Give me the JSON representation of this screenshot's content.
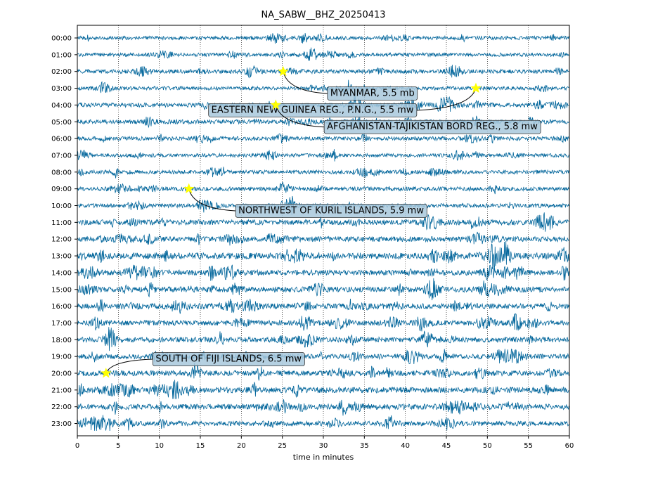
{
  "chart_data": {
    "type": "line",
    "title": "NA_SABW__BHZ_20250413",
    "xlabel": "time in minutes",
    "ylabel": "",
    "xlim": [
      0,
      60
    ],
    "x_ticks": [
      "0",
      "5",
      "10",
      "15",
      "20",
      "25",
      "30",
      "35",
      "40",
      "45",
      "50",
      "55",
      "60"
    ],
    "vertical_grid": "dotted, every 5 minutes",
    "hour_labels": [
      "00:00",
      "01:00",
      "02:00",
      "03:00",
      "04:00",
      "05:00",
      "06:00",
      "07:00",
      "08:00",
      "09:00",
      "10:00",
      "11:00",
      "12:00",
      "13:00",
      "14:00",
      "15:00",
      "16:00",
      "17:00",
      "18:00",
      "19:00",
      "20:00",
      "21:00",
      "22:00",
      "23:00"
    ],
    "trace_color": "#04679c",
    "trace_activity": [
      0.8,
      0.8,
      1.0,
      0.8,
      1.1,
      1.1,
      0.9,
      0.8,
      0.9,
      1.0,
      1.0,
      1.5,
      1.5,
      2.0,
      1.6,
      1.6,
      1.6,
      1.5,
      1.5,
      1.4,
      1.5,
      1.7,
      1.6,
      1.3
    ],
    "events": [
      {
        "label": "MYANMAR, 5.5 mb",
        "hour": 2,
        "minute": 25.1,
        "text_hour": 3.25,
        "text_minute": 30.5
      },
      {
        "label": "EASTERN NEW GUINEA REG., P.N.G., 5.5 mw",
        "hour": 3,
        "minute": 48.6,
        "text_hour": 4.25,
        "text_minute": 16.0
      },
      {
        "label": "AFGHANISTAN-TAJIKISTAN BORD REG., 5.8 mw",
        "hour": 4,
        "minute": 24.2,
        "text_hour": 5.25,
        "text_minute": 30.1
      },
      {
        "label": "NORTHWEST OF KURIL ISLANDS, 5.9 mw",
        "hour": 9,
        "minute": 13.6,
        "text_hour": 10.25,
        "text_minute": 19.3
      },
      {
        "label": "SOUTH OF FIJI ISLANDS, 6.5 mw",
        "hour": 20,
        "minute": 3.5,
        "text_hour": 19.1,
        "text_minute": 9.2
      }
    ],
    "marker_color": "#ffff00",
    "annotation_box_color": "#a8c8dc"
  }
}
